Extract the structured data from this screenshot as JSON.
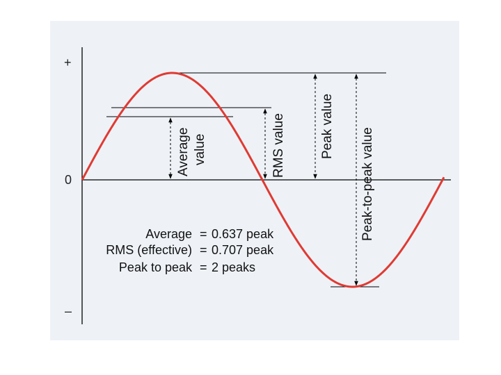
{
  "axis": {
    "plus": "+",
    "zero": "0",
    "minus": "–"
  },
  "labels": {
    "average_line1": "Average",
    "average_line2": "value",
    "rms": "RMS value",
    "peak": "Peak value",
    "peak_to_peak": "Peak-to-peak value"
  },
  "formulas": [
    {
      "name": "Average",
      "eq": "=",
      "value": "0.637 peak"
    },
    {
      "name": "RMS (effective)",
      "eq": "=",
      "value": "0.707 peak"
    },
    {
      "name": "Peak to peak",
      "eq": "=",
      "value": "2 peaks"
    }
  ],
  "levels": {
    "peak": 1.0,
    "rms": 0.707,
    "average": 0.637
  },
  "colors": {
    "waveform": "#e03a32",
    "panel": "#eef2f7",
    "lines": "#000000"
  }
}
